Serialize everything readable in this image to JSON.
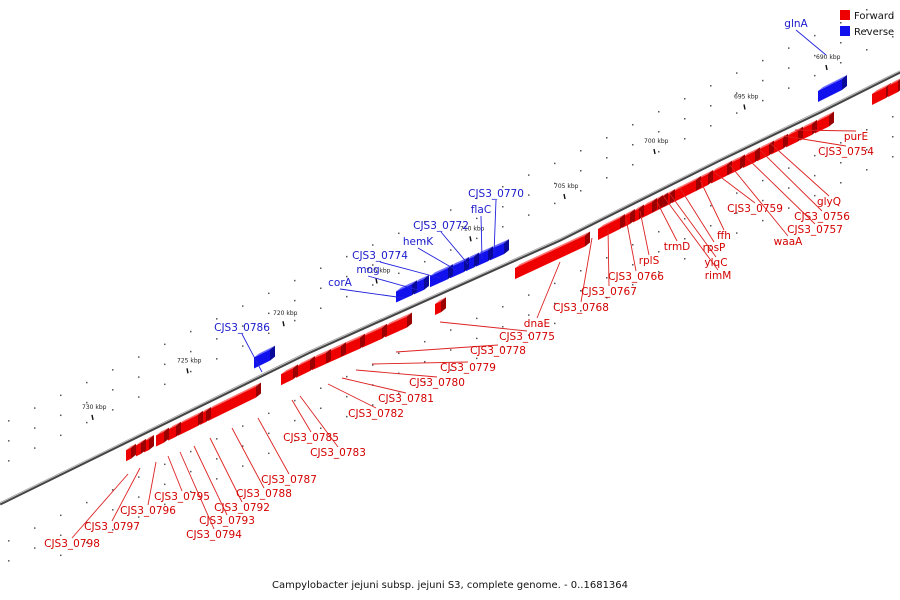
{
  "caption": "Campylobacter jejuni subsp. jejuni S3, complete genome. - 0..1681364",
  "legend": {
    "forward_label": "Forward",
    "reverse_label": "Reverse",
    "forward_color": "#ee0000",
    "reverse_color": "#1111ee"
  },
  "ticks": [
    {
      "label": "690 kbp",
      "major": true
    },
    {
      "label": "695 kbp",
      "major": true
    },
    {
      "label": "700 kbp",
      "major": true
    },
    {
      "label": "705 kbp",
      "major": true
    },
    {
      "label": "710 kbp",
      "major": true
    },
    {
      "label": "715 kbp",
      "major": true
    },
    {
      "label": "720 kbp",
      "major": true
    },
    {
      "label": "725 kbp",
      "major": true
    },
    {
      "label": "730 kbp",
      "major": true
    }
  ],
  "reverse_genes": [
    {
      "name": "glnA"
    },
    {
      "name": "CJS3_0770"
    },
    {
      "name": "flaC"
    },
    {
      "name": "CJS3_0772"
    },
    {
      "name": "hemK"
    },
    {
      "name": "CJS3_0774"
    },
    {
      "name": "mog"
    },
    {
      "name": "corA"
    },
    {
      "name": "CJS3_0786"
    }
  ],
  "forward_genes": [
    {
      "name": "purE"
    },
    {
      "name": "CJS3_0754"
    },
    {
      "name": "glyQ"
    },
    {
      "name": "CJS3_0756"
    },
    {
      "name": "CJS3_0757"
    },
    {
      "name": "waaA"
    },
    {
      "name": "CJS3_0759"
    },
    {
      "name": "ffh"
    },
    {
      "name": "rpsP"
    },
    {
      "name": "ylqC"
    },
    {
      "name": "rimM"
    },
    {
      "name": "trmD"
    },
    {
      "name": "rplS"
    },
    {
      "name": "CJS3_0766"
    },
    {
      "name": "CJS3_0767"
    },
    {
      "name": "CJS3_0768"
    },
    {
      "name": "dnaE"
    },
    {
      "name": "CJS3_0775"
    },
    {
      "name": "CJS3_0778"
    },
    {
      "name": "CJS3_0779"
    },
    {
      "name": "CJS3_0780"
    },
    {
      "name": "CJS3_0781"
    },
    {
      "name": "CJS3_0782"
    },
    {
      "name": "CJS3_0783"
    },
    {
      "name": "CJS3_0785"
    },
    {
      "name": "CJS3_0787"
    },
    {
      "name": "CJS3_0788"
    },
    {
      "name": "CJS3_0792"
    },
    {
      "name": "CJS3_0793"
    },
    {
      "name": "CJS3_0794"
    },
    {
      "name": "CJS3_0795"
    },
    {
      "name": "CJS3_0796"
    },
    {
      "name": "CJS3_0797"
    },
    {
      "name": "CJS3_0798"
    }
  ]
}
